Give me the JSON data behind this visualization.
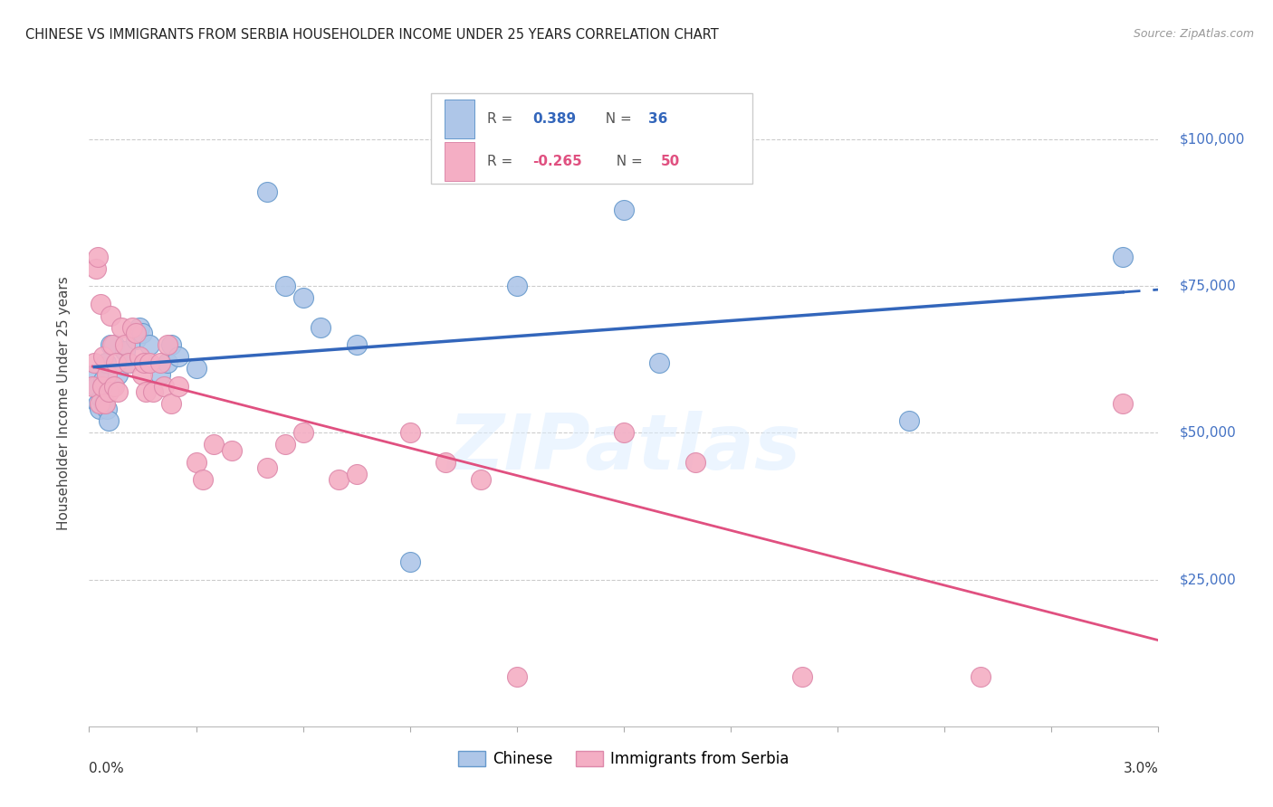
{
  "title": "CHINESE VS IMMIGRANTS FROM SERBIA HOUSEHOLDER INCOME UNDER 25 YEARS CORRELATION CHART",
  "source": "Source: ZipAtlas.com",
  "ylabel": "Householder Income Under 25 years",
  "xmin": 0.0,
  "xmax": 0.03,
  "ymin": 0,
  "ymax": 110000,
  "yticks": [
    0,
    25000,
    50000,
    75000,
    100000
  ],
  "ytick_labels": [
    "",
    "$25,000",
    "$50,000",
    "$75,000",
    "$100,000"
  ],
  "watermark": "ZIPatlas",
  "blue_r_val": "0.389",
  "blue_n_val": "36",
  "pink_r_val": "-0.265",
  "pink_n_val": "50",
  "legend_chinese": "Chinese",
  "legend_serbia": "Immigrants from Serbia",
  "blue_scatter_color": "#aec6e8",
  "pink_scatter_color": "#f4aec4",
  "blue_edge_color": "#6699cc",
  "pink_edge_color": "#dd88aa",
  "blue_line_color": "#3366bb",
  "pink_line_color": "#e05080",
  "chinese_x": [
    0.00015,
    0.0002,
    0.00025,
    0.0003,
    0.00035,
    0.0004,
    0.00042,
    0.00048,
    0.0005,
    0.00055,
    0.0006,
    0.00065,
    0.0007,
    0.0008,
    0.001,
    0.0011,
    0.0013,
    0.0014,
    0.0015,
    0.0017,
    0.002,
    0.0022,
    0.0023,
    0.0025,
    0.003,
    0.005,
    0.0055,
    0.006,
    0.0065,
    0.0075,
    0.009,
    0.012,
    0.015,
    0.016,
    0.023,
    0.029
  ],
  "chinese_y": [
    60000,
    58000,
    55000,
    54000,
    56000,
    59000,
    55000,
    62000,
    54000,
    52000,
    65000,
    58000,
    65000,
    60000,
    64000,
    62000,
    66000,
    68000,
    67000,
    65000,
    60000,
    62000,
    65000,
    63000,
    61000,
    91000,
    75000,
    73000,
    68000,
    65000,
    28000,
    75000,
    88000,
    62000,
    52000,
    80000
  ],
  "serbia_x": [
    0.0001,
    0.00015,
    0.0002,
    0.00025,
    0.0003,
    0.00032,
    0.00038,
    0.0004,
    0.00045,
    0.0005,
    0.00055,
    0.0006,
    0.00065,
    0.0007,
    0.00075,
    0.0008,
    0.0009,
    0.001,
    0.0011,
    0.0012,
    0.0013,
    0.0014,
    0.0015,
    0.00155,
    0.0016,
    0.0017,
    0.0018,
    0.002,
    0.0021,
    0.0022,
    0.0023,
    0.0025,
    0.003,
    0.0032,
    0.0035,
    0.004,
    0.005,
    0.0055,
    0.006,
    0.007,
    0.0075,
    0.009,
    0.01,
    0.011,
    0.012,
    0.015,
    0.017,
    0.02,
    0.025,
    0.029
  ],
  "serbia_y": [
    58000,
    62000,
    78000,
    80000,
    55000,
    72000,
    58000,
    63000,
    55000,
    60000,
    57000,
    70000,
    65000,
    58000,
    62000,
    57000,
    68000,
    65000,
    62000,
    68000,
    67000,
    63000,
    60000,
    62000,
    57000,
    62000,
    57000,
    62000,
    58000,
    65000,
    55000,
    58000,
    45000,
    42000,
    48000,
    47000,
    44000,
    48000,
    50000,
    42000,
    43000,
    50000,
    45000,
    42000,
    8500,
    50000,
    45000,
    8500,
    8500,
    55000
  ]
}
